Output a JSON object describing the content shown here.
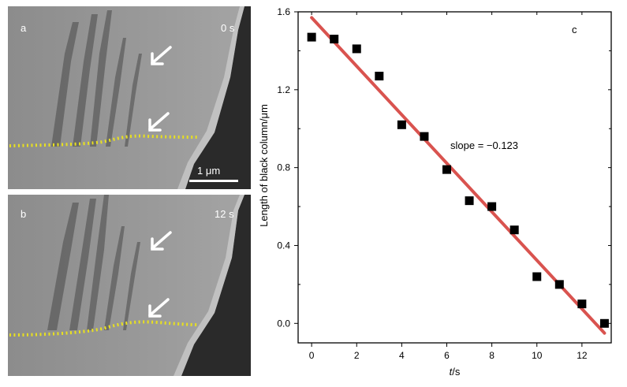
{
  "figure": {
    "panel_a": {
      "label": "a",
      "time": "0 s",
      "scalebar": "1 μm"
    },
    "panel_b": {
      "label": "b",
      "time": "12 s"
    },
    "colors": {
      "fit_line": "#d9534f",
      "interface_dots": "#e8e020",
      "marker": "#000000"
    }
  },
  "chart_data": {
    "type": "scatter",
    "panel_label": "c",
    "xlabel_italic": "t",
    "xlabel_unit": "/s",
    "ylabel": "Length of black column/μm",
    "annotation": "slope = −0.123",
    "xlim": [
      -0.6,
      13.3
    ],
    "ylim": [
      -0.1,
      1.6
    ],
    "xticks": [
      0,
      2,
      4,
      6,
      8,
      10,
      12
    ],
    "yticks": [
      0.0,
      0.4,
      0.8,
      1.2,
      1.6
    ],
    "ytick_labels": [
      "0.0",
      "0.4",
      "0.8",
      "1.2",
      "1.6"
    ],
    "x": [
      0,
      1,
      2,
      3,
      4,
      5,
      6,
      7,
      8,
      9,
      10,
      11,
      12,
      13
    ],
    "y": [
      1.47,
      1.46,
      1.41,
      1.27,
      1.02,
      0.96,
      0.79,
      0.63,
      0.6,
      0.48,
      0.24,
      0.2,
      0.1,
      0.0
    ],
    "fit": {
      "x": [
        0,
        13
      ],
      "y": [
        1.57,
        -0.05
      ]
    }
  }
}
